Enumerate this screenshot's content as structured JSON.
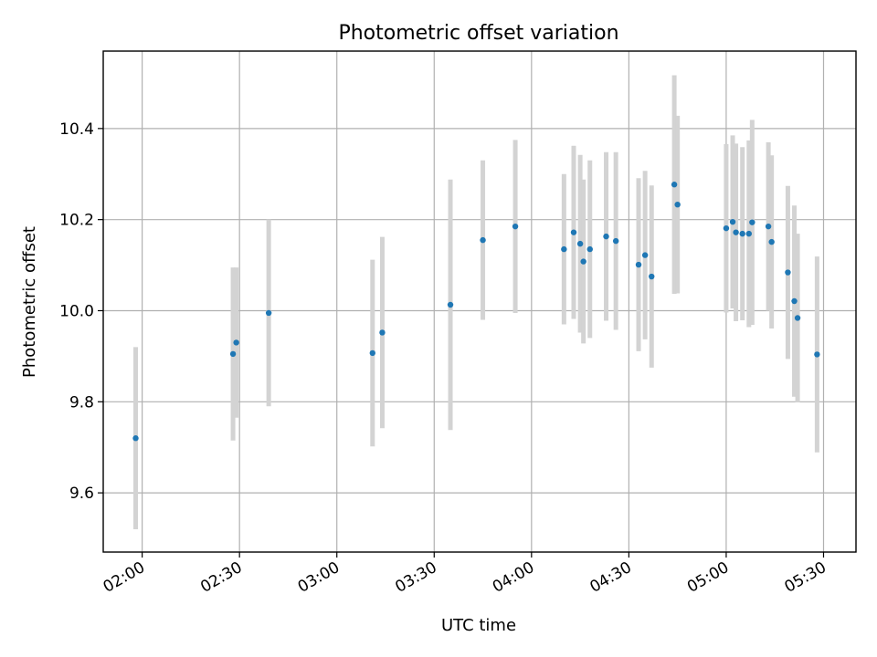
{
  "chart_data": {
    "type": "scatter",
    "title": "Photometric offset variation",
    "xlabel": "UTC time",
    "ylabel": "Photometric offset",
    "x_unit": "UTC time (HH:MM)",
    "xlim": [
      "01:48",
      "05:40"
    ],
    "ylim": [
      9.47,
      10.57
    ],
    "x_ticks": [
      "02:00",
      "02:30",
      "03:00",
      "03:30",
      "04:00",
      "04:30",
      "05:00",
      "05:30"
    ],
    "y_ticks": [
      9.6,
      9.8,
      10.0,
      10.2,
      10.4
    ],
    "y_tick_labels": [
      "9.6",
      "9.8",
      "10.0",
      "10.2",
      "10.4"
    ],
    "grid": true,
    "point_color": "#1f77b4",
    "errorbar_color": "#d3d3d3",
    "points": [
      {
        "t": "01:58",
        "y": 9.72,
        "err": 0.2
      },
      {
        "t": "02:28",
        "y": 9.905,
        "err": 0.19
      },
      {
        "t": "02:29",
        "y": 9.93,
        "err": 0.165
      },
      {
        "t": "02:39",
        "y": 9.995,
        "err": 0.205
      },
      {
        "t": "03:11",
        "y": 9.907,
        "err": 0.205
      },
      {
        "t": "03:14",
        "y": 9.952,
        "err": 0.21
      },
      {
        "t": "03:35",
        "y": 10.013,
        "err": 0.275
      },
      {
        "t": "03:45",
        "y": 10.155,
        "err": 0.175
      },
      {
        "t": "03:55",
        "y": 10.185,
        "err": 0.19
      },
      {
        "t": "04:10",
        "y": 10.135,
        "err": 0.165
      },
      {
        "t": "04:13",
        "y": 10.172,
        "err": 0.19
      },
      {
        "t": "04:15",
        "y": 10.147,
        "err": 0.195
      },
      {
        "t": "04:16",
        "y": 10.108,
        "err": 0.18
      },
      {
        "t": "04:18",
        "y": 10.135,
        "err": 0.195
      },
      {
        "t": "04:23",
        "y": 10.163,
        "err": 0.185
      },
      {
        "t": "04:26",
        "y": 10.153,
        "err": 0.195
      },
      {
        "t": "04:33",
        "y": 10.101,
        "err": 0.19
      },
      {
        "t": "04:35",
        "y": 10.122,
        "err": 0.185
      },
      {
        "t": "04:37",
        "y": 10.075,
        "err": 0.2
      },
      {
        "t": "04:44",
        "y": 10.277,
        "err": 0.24
      },
      {
        "t": "04:45",
        "y": 10.233,
        "err": 0.195
      },
      {
        "t": "05:00",
        "y": 10.181,
        "err": 0.185
      },
      {
        "t": "05:02",
        "y": 10.195,
        "err": 0.19
      },
      {
        "t": "05:03",
        "y": 10.172,
        "err": 0.195
      },
      {
        "t": "05:05",
        "y": 10.169,
        "err": 0.19
      },
      {
        "t": "05:07",
        "y": 10.169,
        "err": 0.205
      },
      {
        "t": "05:08",
        "y": 10.194,
        "err": 0.225
      },
      {
        "t": "05:13",
        "y": 10.185,
        "err": 0.185
      },
      {
        "t": "05:14",
        "y": 10.151,
        "err": 0.19
      },
      {
        "t": "05:19",
        "y": 10.084,
        "err": 0.19
      },
      {
        "t": "05:21",
        "y": 10.021,
        "err": 0.21
      },
      {
        "t": "05:22",
        "y": 9.984,
        "err": 0.185
      },
      {
        "t": "05:28",
        "y": 9.904,
        "err": 0.215
      }
    ]
  }
}
